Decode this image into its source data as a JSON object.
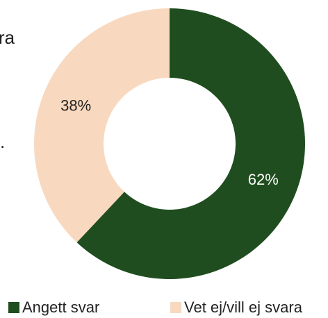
{
  "chart_data": {
    "type": "donut",
    "categories": [
      "Angett svar",
      "Vet ej/vill ej svara"
    ],
    "values": [
      62,
      38
    ],
    "value_labels": [
      "62%",
      "38%"
    ],
    "colors": [
      "#1f4d1f",
      "#f8d9bf"
    ],
    "label_colors": [
      "#ffffff",
      "#222222"
    ],
    "annotations": [
      "ra",
      "."
    ],
    "legend": "bottom"
  }
}
